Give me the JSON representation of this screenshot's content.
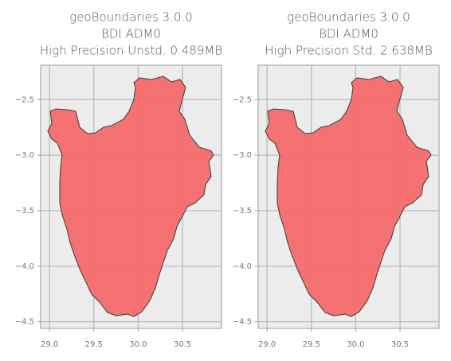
{
  "chart_data": [
    {
      "type": "map",
      "title": [
        "geoBoundaries 3.0.0",
        "BDI ADM0",
        "High Precision Unstd. 0.489MB"
      ],
      "xlim": [
        28.9,
        30.94
      ],
      "ylim": [
        -4.56,
        -2.19
      ],
      "xticks": [
        {
          "value": 29,
          "label": "29.0"
        },
        29.5,
        {
          "value": 30,
          "label": "30.0"
        },
        30.5
      ],
      "yticks": [
        {
          "value": -2.5,
          "label": "−2.5"
        },
        {
          "value": -3,
          "label": "−3.0"
        },
        {
          "value": -3.5,
          "label": "−3.5"
        },
        {
          "value": -4,
          "label": "−4.0"
        },
        {
          "value": -4.5,
          "label": "−4.5"
        }
      ],
      "color": "#f76b6b",
      "grid": true
    },
    {
      "type": "map",
      "title": [
        "geoBoundaries 3.0.0",
        "BDI ADM0",
        "High Precision Std. 2.638MB"
      ],
      "xlim": [
        28.9,
        30.94
      ],
      "ylim": [
        -4.56,
        -2.19
      ],
      "xticks": [
        {
          "value": 29,
          "label": "29.0"
        },
        29.5,
        {
          "value": 30,
          "label": "30.0"
        },
        30.5
      ],
      "yticks": [
        {
          "value": -2.5,
          "label": "−2.5"
        },
        {
          "value": -3,
          "label": "−3.0"
        },
        {
          "value": -3.5,
          "label": "−3.5"
        },
        {
          "value": -4,
          "label": "−4.0"
        },
        {
          "value": -4.5,
          "label": "−4.5"
        }
      ],
      "color": "#f76b6b",
      "grid": true
    }
  ]
}
